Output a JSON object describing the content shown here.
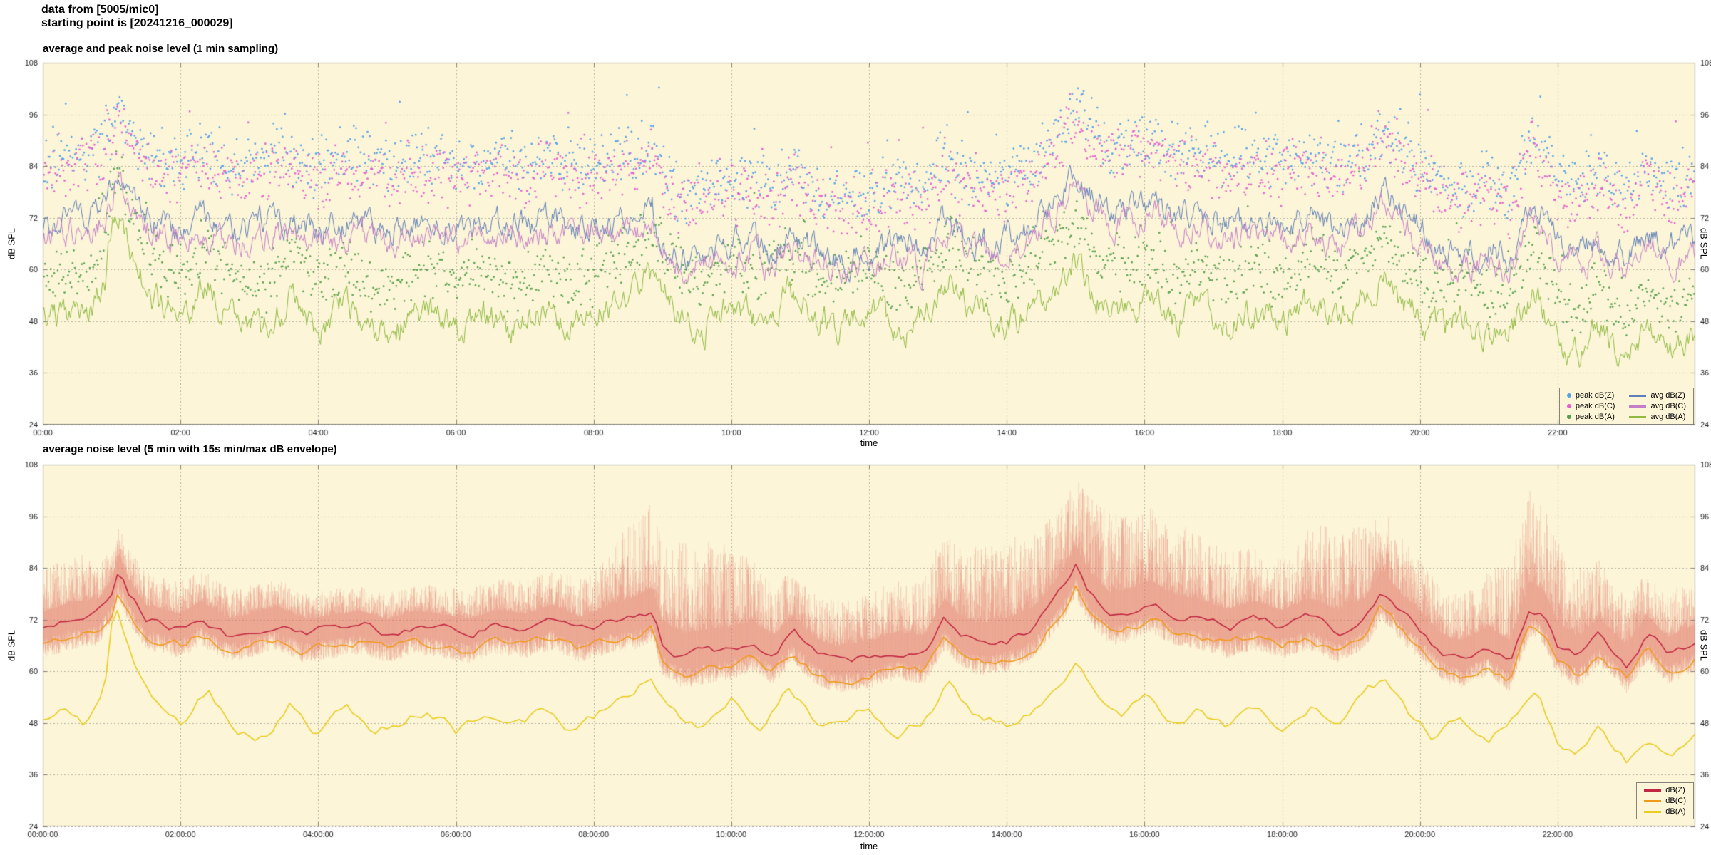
{
  "header": {
    "line1": "data from [5005/mic0]",
    "line2": "starting point is [20241216_000029]"
  },
  "colors": {
    "page_bg": "#ffffff",
    "plot_bg": "#fcf5d8",
    "grid": "#b5b19e",
    "border": "#86847a",
    "text": "#1a1a1a"
  },
  "chart_data": [
    {
      "type": "line",
      "title": "average and peak noise level (1 min sampling)",
      "xlabel": "time",
      "ylabel": "dB SPL",
      "grid": true,
      "legend_position": "bottom-right",
      "x_range": [
        0,
        24
      ],
      "y_range": [
        24,
        108
      ],
      "y_ticks": [
        24,
        36,
        48,
        60,
        72,
        84,
        96,
        108
      ],
      "x_ticks": [
        {
          "v": 0,
          "label": "00:00"
        },
        {
          "v": 2,
          "label": "02:00"
        },
        {
          "v": 4,
          "label": "04:00"
        },
        {
          "v": 6,
          "label": "06:00"
        },
        {
          "v": 8,
          "label": "08:00"
        },
        {
          "v": 10,
          "label": "10:00"
        },
        {
          "v": 12,
          "label": "12:00"
        },
        {
          "v": 14,
          "label": "14:00"
        },
        {
          "v": 16,
          "label": "16:00"
        },
        {
          "v": 18,
          "label": "18:00"
        },
        {
          "v": 20,
          "label": "20:00"
        },
        {
          "v": 22,
          "label": "22:00"
        }
      ],
      "sampling_minutes": 1,
      "series": [
        {
          "name": "avg dB(Z)",
          "type": "line",
          "color": "#5f7fb8",
          "noise": 4.2,
          "width": 1,
          "control": [
            [
              0,
              70
            ],
            [
              0.4,
              72
            ],
            [
              0.8,
              73
            ],
            [
              1,
              78
            ],
            [
              1.1,
              84
            ],
            [
              1.25,
              78
            ],
            [
              1.5,
              72
            ],
            [
              2,
              70
            ],
            [
              2.3,
              73
            ],
            [
              2.7,
              69
            ],
            [
              3,
              70
            ],
            [
              3.4,
              72
            ],
            [
              3.8,
              69
            ],
            [
              4.2,
              70
            ],
            [
              4.6,
              71
            ],
            [
              5,
              69
            ],
            [
              5.4,
              71
            ],
            [
              5.8,
              70
            ],
            [
              6.2,
              69
            ],
            [
              6.6,
              71
            ],
            [
              7,
              70
            ],
            [
              7.4,
              72
            ],
            [
              7.8,
              69
            ],
            [
              8.2,
              71
            ],
            [
              8.6,
              72
            ],
            [
              8.85,
              74
            ],
            [
              9,
              66
            ],
            [
              9.3,
              63
            ],
            [
              9.6,
              64
            ],
            [
              10,
              65
            ],
            [
              10.3,
              67
            ],
            [
              10.6,
              64
            ],
            [
              10.9,
              69
            ],
            [
              11.2,
              64
            ],
            [
              11.5,
              62
            ],
            [
              12,
              63
            ],
            [
              12.4,
              65
            ],
            [
              12.8,
              64
            ],
            [
              13.1,
              72
            ],
            [
              13.3,
              68
            ],
            [
              13.6,
              66
            ],
            [
              14,
              67
            ],
            [
              14.4,
              70
            ],
            [
              14.8,
              78
            ],
            [
              15,
              84
            ],
            [
              15.2,
              78
            ],
            [
              15.5,
              73
            ],
            [
              15.8,
              74
            ],
            [
              16.1,
              76
            ],
            [
              16.4,
              73
            ],
            [
              16.8,
              72
            ],
            [
              17.2,
              70
            ],
            [
              17.6,
              72
            ],
            [
              18,
              70
            ],
            [
              18.4,
              72
            ],
            [
              18.8,
              69
            ],
            [
              19.2,
              72
            ],
            [
              19.45,
              79
            ],
            [
              19.7,
              74
            ],
            [
              20,
              70
            ],
            [
              20.3,
              65
            ],
            [
              20.6,
              63
            ],
            [
              21,
              66
            ],
            [
              21.3,
              62
            ],
            [
              21.6,
              75
            ],
            [
              21.8,
              73
            ],
            [
              22,
              66
            ],
            [
              22.3,
              63
            ],
            [
              22.6,
              68
            ],
            [
              23,
              62
            ],
            [
              23.3,
              69
            ],
            [
              23.6,
              64
            ],
            [
              24,
              67
            ]
          ]
        },
        {
          "name": "avg dB(C)",
          "type": "line",
          "color": "#c47fc8",
          "noise": 4.2,
          "width": 1,
          "ref": [
            0,
            0
          ],
          "offset": -3
        },
        {
          "name": "avg dB(A)",
          "type": "line",
          "color": "#8fba3f",
          "noise": 4.6,
          "width": 1,
          "control": [
            [
              0,
              48
            ],
            [
              0.3,
              50
            ],
            [
              0.6,
              47
            ],
            [
              0.9,
              55
            ],
            [
              1,
              70
            ],
            [
              1.1,
              73
            ],
            [
              1.3,
              62
            ],
            [
              1.6,
              53
            ],
            [
              2,
              49
            ],
            [
              2.4,
              56
            ],
            [
              2.8,
              47
            ],
            [
              3.2,
              45
            ],
            [
              3.6,
              53
            ],
            [
              4,
              46
            ],
            [
              4.4,
              52
            ],
            [
              4.8,
              44
            ],
            [
              5.2,
              48
            ],
            [
              5.6,
              51
            ],
            [
              6,
              46
            ],
            [
              6.4,
              50
            ],
            [
              6.8,
              46
            ],
            [
              7.2,
              50
            ],
            [
              7.6,
              47
            ],
            [
              8,
              49
            ],
            [
              8.4,
              53
            ],
            [
              8.8,
              59
            ],
            [
              9.2,
              50
            ],
            [
              9.6,
              46
            ],
            [
              10,
              53
            ],
            [
              10.4,
              47
            ],
            [
              10.8,
              55
            ],
            [
              11.2,
              48
            ],
            [
              11.6,
              46
            ],
            [
              12,
              51
            ],
            [
              12.4,
              45
            ],
            [
              12.8,
              49
            ],
            [
              13.2,
              58
            ],
            [
              13.5,
              51
            ],
            [
              14,
              47
            ],
            [
              14.5,
              52
            ],
            [
              15,
              61
            ],
            [
              15.3,
              54
            ],
            [
              15.7,
              50
            ],
            [
              16,
              54
            ],
            [
              16.4,
              48
            ],
            [
              16.8,
              52
            ],
            [
              17.2,
              47
            ],
            [
              17.6,
              51
            ],
            [
              18,
              48
            ],
            [
              18.4,
              53
            ],
            [
              18.8,
              48
            ],
            [
              19.2,
              55
            ],
            [
              19.5,
              58
            ],
            [
              19.8,
              51
            ],
            [
              20.2,
              45
            ],
            [
              20.6,
              50
            ],
            [
              21,
              43
            ],
            [
              21.4,
              49
            ],
            [
              21.7,
              55
            ],
            [
              22,
              44
            ],
            [
              22.3,
              40
            ],
            [
              22.6,
              47
            ],
            [
              23,
              39
            ],
            [
              23.3,
              46
            ],
            [
              23.6,
              40
            ],
            [
              24,
              44
            ]
          ]
        },
        {
          "name": "peak dB(Z)",
          "type": "scatter",
          "color": "#55a0e8",
          "ref": [
            0,
            0
          ],
          "offset": 15,
          "spread": 8
        },
        {
          "name": "peak dB(C)",
          "type": "scatter",
          "color": "#e45fd0",
          "ref": [
            0,
            0
          ],
          "offset": 12,
          "spread": 8
        },
        {
          "name": "peak dB(A)",
          "type": "scatter",
          "color": "#55a04d",
          "ref": [
            0,
            2
          ],
          "offset": 10,
          "spread": 8
        }
      ]
    },
    {
      "type": "line",
      "title": "average noise level (5 min with 15s min/max dB envelope)",
      "xlabel": "time",
      "ylabel": "dB SPL",
      "grid": true,
      "legend_position": "bottom-right",
      "x_range": [
        0,
        24
      ],
      "y_range": [
        24,
        108
      ],
      "y_ticks": [
        24,
        36,
        48,
        60,
        72,
        84,
        96,
        108
      ],
      "x_ticks": [
        {
          "v": 0,
          "label": "00:00:00"
        },
        {
          "v": 2,
          "label": "02:00:00"
        },
        {
          "v": 4,
          "label": "04:00:00"
        },
        {
          "v": 6,
          "label": "06:00:00"
        },
        {
          "v": 8,
          "label": "08:00:00"
        },
        {
          "v": 10,
          "label": "10:00:00"
        },
        {
          "v": 12,
          "label": "12:00:00"
        },
        {
          "v": 14,
          "label": "14:00:00"
        },
        {
          "v": 16,
          "label": "16:00:00"
        },
        {
          "v": 18,
          "label": "18:00:00"
        },
        {
          "v": 20,
          "label": "20:00:00"
        },
        {
          "v": 22,
          "label": "22:00:00"
        }
      ],
      "sampling_minutes": 5,
      "series": [
        {
          "name": "dB(Z)",
          "type": "line",
          "color": "#c22742",
          "noise": 1.6,
          "width": 1.6,
          "ref": [
            0,
            0
          ],
          "offset": 0
        },
        {
          "name": "dB(C)",
          "type": "line",
          "color": "#f09a1a",
          "noise": 1.6,
          "width": 1.6,
          "ref": [
            0,
            0
          ],
          "offset": -4
        },
        {
          "name": "dB(A)",
          "type": "line",
          "color": "#e9cd1e",
          "noise": 2.0,
          "width": 1.6,
          "ref": [
            0,
            2
          ],
          "offset": 0
        }
      ],
      "envelope": {
        "series": 0,
        "color": "rgba(224,112,100,0.30)",
        "down": 7,
        "up": [
          [
            0,
            12
          ],
          [
            0.6,
            13
          ],
          [
            1,
            8
          ],
          [
            1.4,
            9
          ],
          [
            2,
            9
          ],
          [
            3,
            8
          ],
          [
            4,
            7
          ],
          [
            5,
            7
          ],
          [
            6,
            8
          ],
          [
            7,
            9
          ],
          [
            8,
            11
          ],
          [
            8.6,
            22
          ],
          [
            9.2,
            26
          ],
          [
            9.8,
            24
          ],
          [
            10.4,
            16
          ],
          [
            11,
            12
          ],
          [
            12,
            13
          ],
          [
            12.8,
            16
          ],
          [
            13.2,
            20
          ],
          [
            14,
            22
          ],
          [
            14.8,
            18
          ],
          [
            15.4,
            22
          ],
          [
            16,
            21
          ],
          [
            16.6,
            19
          ],
          [
            17.2,
            16
          ],
          [
            18,
            14
          ],
          [
            18.6,
            22
          ],
          [
            19.2,
            20
          ],
          [
            19.8,
            15
          ],
          [
            20.4,
            12
          ],
          [
            21,
            16
          ],
          [
            21.6,
            26
          ],
          [
            22.2,
            20
          ],
          [
            22.8,
            14
          ],
          [
            23.4,
            13
          ],
          [
            24,
            12
          ]
        ]
      }
    }
  ]
}
